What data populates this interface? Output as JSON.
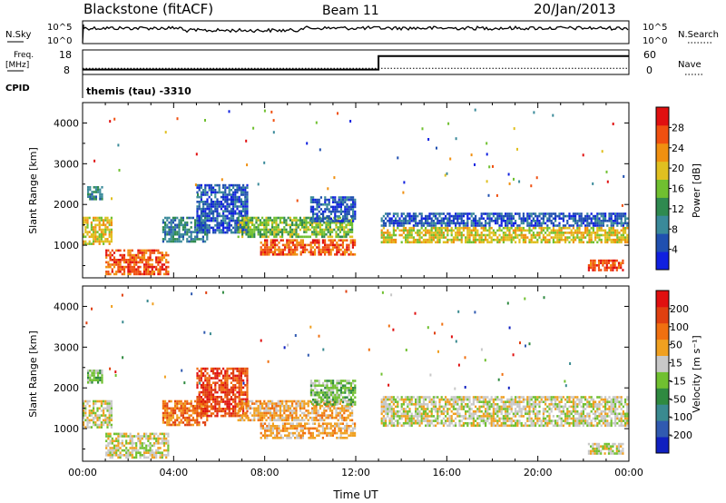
{
  "header": {
    "title": "Blackstone (fitACF)",
    "beam": "Beam 11",
    "date": "20/Jan/2013"
  },
  "panels": {
    "nsky": {
      "left_label": "N.Sky",
      "right_label": "N.Search",
      "left_ticks": [
        "10^5",
        "10^0"
      ],
      "right_ticks": [
        "10^5",
        "10^0"
      ]
    },
    "freq": {
      "label_top": "Freq.",
      "label_unit": "[MHz]",
      "left_ticks": [
        "18",
        "8"
      ],
      "right_ticks": [
        "60",
        "0"
      ],
      "right_label": "Nave",
      "cpid_label": "CPID",
      "cpid_text": "themis (tau) -3310",
      "freq_series": {
        "x": [
          0,
          13.0,
          13.0,
          24
        ],
        "y": [
          10.5,
          10.5,
          10.5,
          10.5
        ]
      },
      "nave_series": {
        "x": [
          0,
          13.0,
          13.0,
          24
        ],
        "y": [
          12,
          12,
          45,
          45
        ]
      }
    }
  },
  "chart_data": [
    {
      "type": "heatmap",
      "quantity": "power",
      "xlabel": "",
      "ylabel": "Slant Range [km]",
      "xlim": [
        0,
        24
      ],
      "ylim": [
        200,
        4500
      ],
      "y_ticks": [
        1000,
        2000,
        3000,
        4000
      ],
      "colorbar": {
        "label": "Power [dB]",
        "ticks": [
          "4",
          "8",
          "12",
          "16",
          "20",
          "24",
          "28"
        ],
        "range": [
          0,
          30
        ],
        "colors": [
          "#1020e0",
          "#2050b0",
          "#3a8a9a",
          "#2f8a50",
          "#70c030",
          "#e0c020",
          "#f09010",
          "#f05010",
          "#e01010"
        ]
      },
      "regions": [
        {
          "t0": 0.0,
          "t1": 1.3,
          "r0": 1050,
          "r1": 1700,
          "level": 5
        },
        {
          "t0": 0.2,
          "t1": 0.9,
          "r0": 2150,
          "r1": 2450,
          "level": 2
        },
        {
          "t0": 1.0,
          "t1": 3.8,
          "r0": 300,
          "r1": 900,
          "level": 7
        },
        {
          "t0": 3.5,
          "t1": 5.5,
          "r0": 1100,
          "r1": 1700,
          "level": 2
        },
        {
          "t0": 5.0,
          "t1": 7.2,
          "r0": 1300,
          "r1": 2500,
          "level": 1
        },
        {
          "t0": 6.8,
          "t1": 11.8,
          "r0": 1200,
          "r1": 1700,
          "level": 4
        },
        {
          "t0": 7.8,
          "t1": 12.0,
          "r0": 750,
          "r1": 1150,
          "level": 7
        },
        {
          "t0": 10.0,
          "t1": 12.0,
          "r0": 1600,
          "r1": 2200,
          "level": 1
        },
        {
          "t0": 13.1,
          "t1": 23.9,
          "r0": 1500,
          "r1": 1800,
          "level": 1
        },
        {
          "t0": 13.1,
          "t1": 23.9,
          "r0": 1100,
          "r1": 1450,
          "level": 5
        },
        {
          "t0": 22.2,
          "t1": 23.7,
          "r0": 380,
          "r1": 650,
          "level": 7
        }
      ]
    },
    {
      "type": "heatmap",
      "quantity": "velocity",
      "xlabel": "Time UT",
      "ylabel": "Slant Range [km]",
      "xlim": [
        0,
        24
      ],
      "ylim": [
        200,
        4500
      ],
      "x_ticks": [
        "00:00",
        "04:00",
        "08:00",
        "12:00",
        "16:00",
        "20:00",
        "00:00"
      ],
      "y_ticks": [
        1000,
        2000,
        3000,
        4000
      ],
      "colorbar": {
        "label": "Velocity [m s⁻¹]",
        "ticks": [
          "200",
          "100",
          "50",
          "15",
          "-15",
          "-50",
          "-100",
          "-200"
        ],
        "range": [
          -250,
          250
        ],
        "colors": [
          "#1020c0",
          "#305ab0",
          "#3a8a90",
          "#2f8a40",
          "#70c030",
          "#c8c8c8",
          "#f0a020",
          "#f07010",
          "#e04010",
          "#e01010"
        ]
      },
      "regions": [
        {
          "t0": 0.0,
          "t1": 1.3,
          "r0": 1050,
          "r1": 1700,
          "level": 5
        },
        {
          "t0": 0.2,
          "t1": 0.9,
          "r0": 2150,
          "r1": 2450,
          "level": 4
        },
        {
          "t0": 1.0,
          "t1": 3.8,
          "r0": 300,
          "r1": 900,
          "level": 5
        },
        {
          "t0": 3.5,
          "t1": 5.5,
          "r0": 1100,
          "r1": 1700,
          "level": 7
        },
        {
          "t0": 5.0,
          "t1": 7.2,
          "r0": 1300,
          "r1": 2500,
          "level": 8
        },
        {
          "t0": 6.8,
          "t1": 11.8,
          "r0": 1200,
          "r1": 1700,
          "level": 6
        },
        {
          "t0": 7.8,
          "t1": 12.0,
          "r0": 750,
          "r1": 1150,
          "level": 6
        },
        {
          "t0": 10.0,
          "t1": 12.0,
          "r0": 1600,
          "r1": 2200,
          "level": 4
        },
        {
          "t0": 13.1,
          "t1": 23.9,
          "r0": 1500,
          "r1": 1800,
          "level": 5
        },
        {
          "t0": 13.1,
          "t1": 23.9,
          "r0": 1100,
          "r1": 1450,
          "level": 5
        },
        {
          "t0": 22.2,
          "t1": 23.7,
          "r0": 380,
          "r1": 650,
          "level": 5
        }
      ]
    }
  ]
}
